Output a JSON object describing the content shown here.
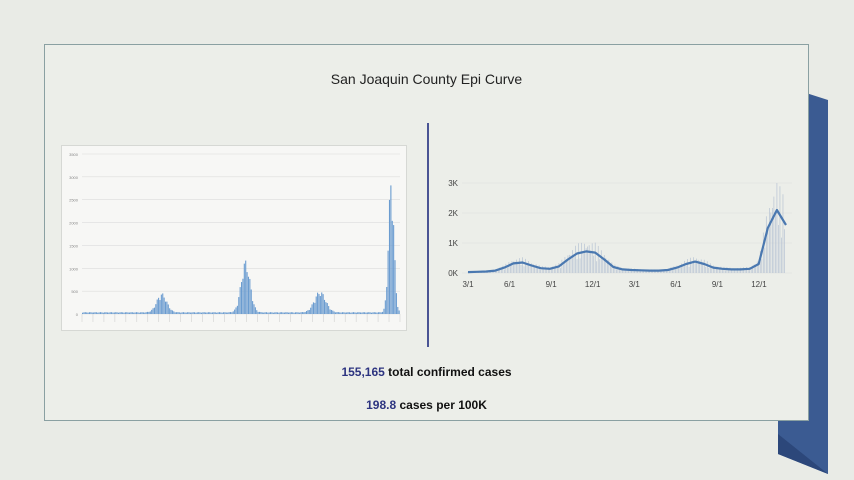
{
  "slide": {
    "title": "San Joaquin County Epi Curve",
    "stats": [
      {
        "value": "155,165",
        "label": "total confirmed cases"
      },
      {
        "value": "198.8",
        "label": "cases per 100K"
      }
    ],
    "colors": {
      "accent": "#2d3480",
      "bar": "#6b9cd0",
      "line": "#4a78b0",
      "ribbon": "#3b5b92"
    }
  },
  "chart_data": [
    {
      "type": "bar",
      "title": "",
      "ylim": [
        0,
        3500
      ],
      "yticks": [
        "3500",
        "3000",
        "2500",
        "2000",
        "1500",
        "1000",
        "500",
        "0"
      ],
      "waves": [
        {
          "peak_pos": 0.25,
          "peak": 420,
          "width": 0.022
        },
        {
          "peak_pos": 0.515,
          "peak": 1150,
          "width": 0.02
        },
        {
          "peak_pos": 0.75,
          "peak": 470,
          "width": 0.025
        },
        {
          "peak_pos": 0.975,
          "peak": 3050,
          "width": 0.012
        }
      ],
      "baseline": 40
    },
    {
      "type": "line",
      "title": "",
      "ylim": [
        0,
        3
      ],
      "yticks": [
        "3K",
        "2K",
        "1K",
        "0K"
      ],
      "xticks": [
        "3/1",
        "6/1",
        "9/1",
        "12/1",
        "3/1",
        "6/1",
        "9/1",
        "12/1"
      ],
      "series": [
        {
          "values": [
            0.03,
            0.04,
            0.05,
            0.08,
            0.18,
            0.32,
            0.35,
            0.25,
            0.16,
            0.14,
            0.22,
            0.45,
            0.65,
            0.72,
            0.68,
            0.45,
            0.2,
            0.12,
            0.1,
            0.09,
            0.08,
            0.08,
            0.1,
            0.18,
            0.3,
            0.38,
            0.3,
            0.18,
            0.14,
            0.12,
            0.12,
            0.14,
            0.3,
            1.5,
            2.1,
            1.6
          ]
        }
      ]
    }
  ]
}
